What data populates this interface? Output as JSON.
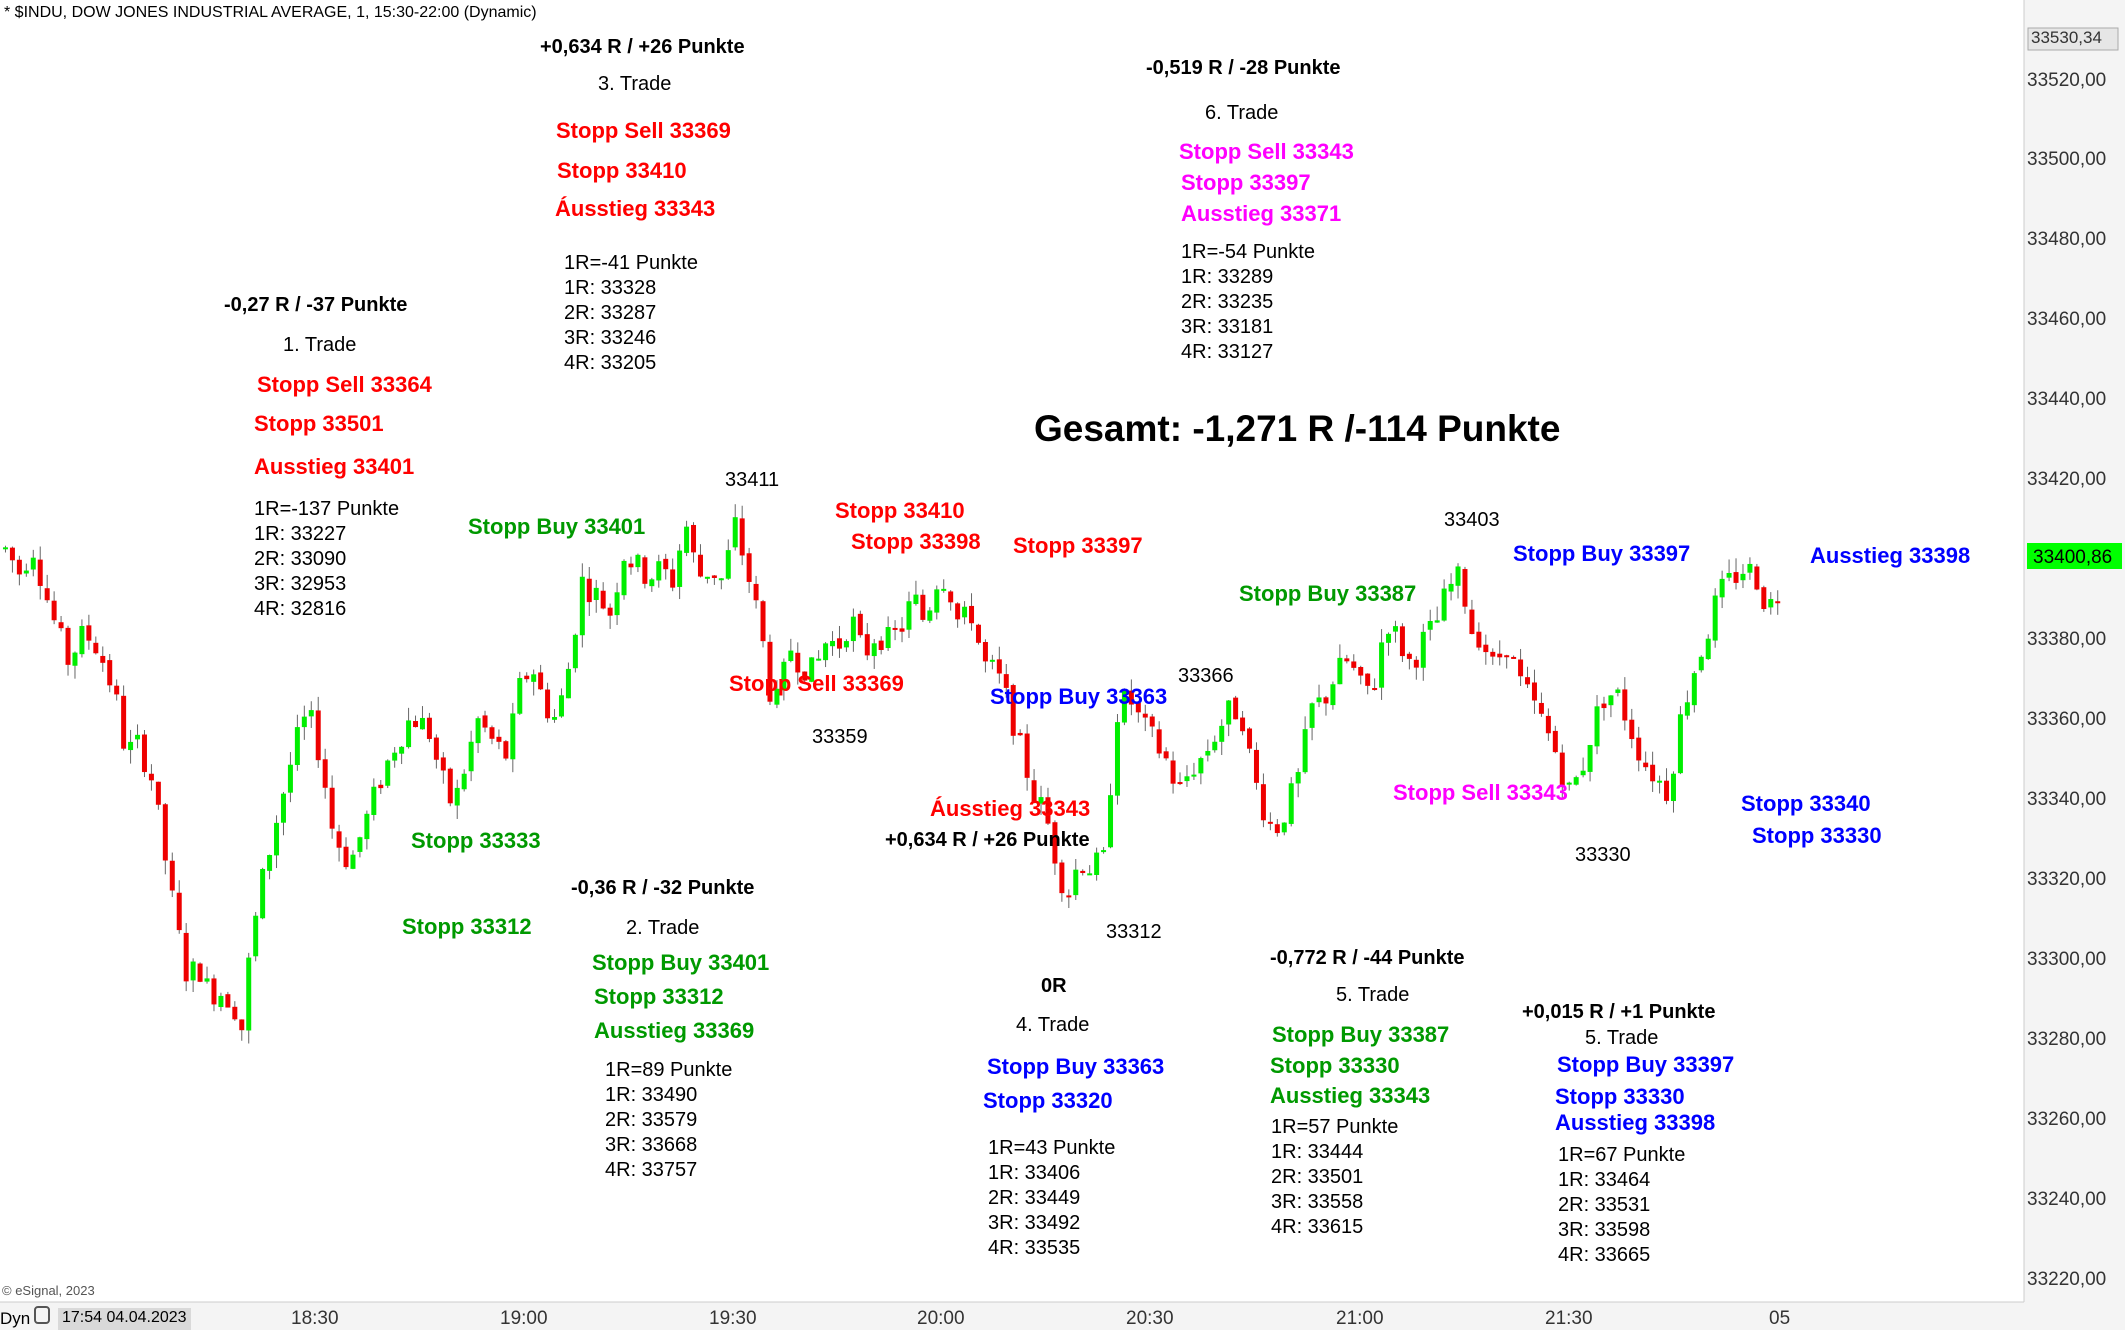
{
  "header": {
    "title": "* $INDU, DOW JONES INDUSTRIAL AVERAGE, 1, 15:30-22:00 (Dynamic)"
  },
  "footer": {
    "copyright": "© eSignal, 2023",
    "mode": "Dyn",
    "date_box": "17:54 04.04.2023"
  },
  "chart_data": {
    "type": "candlestick",
    "title": "* $INDU, DOW JONES INDUSTRIAL AVERAGE, 1, 15:30-22:00 (Dynamic)",
    "y_axis": {
      "ylim": [
        33210,
        33545
      ],
      "ticks": [
        "33220,00",
        "33240,00",
        "33260,00",
        "33280,00",
        "33300,00",
        "33320,00",
        "33340,00",
        "33360,00",
        "33380,00",
        "33400,00",
        "33420,00",
        "33440,00",
        "33460,00",
        "33480,00",
        "33500,00",
        "33520,00",
        "33530,34"
      ],
      "last_price": "33400,86",
      "last_price_color": "#00ff00"
    },
    "x_axis": {
      "ticks": [
        "18:30",
        "19:00",
        "19:30",
        "20:00",
        "20:30",
        "21:00",
        "21:30",
        "05"
      ]
    },
    "up_color": "#00ee00",
    "down_color": "#ee0000",
    "anchors": [
      {
        "x": 0,
        "p": 33401
      },
      {
        "x": 7,
        "p": 33395
      },
      {
        "x": 13,
        "p": 33402
      },
      {
        "x": 22,
        "p": 33385
      },
      {
        "x": 30,
        "p": 33373
      },
      {
        "x": 38,
        "p": 33380
      },
      {
        "x": 45,
        "p": 33376
      },
      {
        "x": 53,
        "p": 33364
      },
      {
        "x": 58,
        "p": 33350
      },
      {
        "x": 64,
        "p": 33352
      },
      {
        "x": 70,
        "p": 33345
      },
      {
        "x": 75,
        "p": 33330
      },
      {
        "x": 82,
        "p": 33308
      },
      {
        "x": 88,
        "p": 33293
      },
      {
        "x": 93,
        "p": 33297
      },
      {
        "x": 98,
        "p": 33290
      },
      {
        "x": 105,
        "p": 33290
      },
      {
        "x": 110,
        "p": 33287
      },
      {
        "x": 114,
        "p": 33281
      },
      {
        "x": 118,
        "p": 33300
      },
      {
        "x": 124,
        "p": 33318
      },
      {
        "x": 132,
        "p": 33336
      },
      {
        "x": 140,
        "p": 33352
      },
      {
        "x": 146,
        "p": 33360
      },
      {
        "x": 152,
        "p": 33349
      },
      {
        "x": 158,
        "p": 33330
      },
      {
        "x": 166,
        "p": 33322
      },
      {
        "x": 172,
        "p": 33330
      },
      {
        "x": 180,
        "p": 33342
      },
      {
        "x": 188,
        "p": 33352
      },
      {
        "x": 196,
        "p": 33359
      },
      {
        "x": 204,
        "p": 33356
      },
      {
        "x": 210,
        "p": 33344
      },
      {
        "x": 216,
        "p": 33336
      },
      {
        "x": 222,
        "p": 33347
      },
      {
        "x": 228,
        "p": 33358
      },
      {
        "x": 236,
        "p": 33352
      },
      {
        "x": 242,
        "p": 33349
      },
      {
        "x": 248,
        "p": 33366
      },
      {
        "x": 254,
        "p": 33372
      },
      {
        "x": 260,
        "p": 33362
      },
      {
        "x": 266,
        "p": 33358
      },
      {
        "x": 272,
        "p": 33372
      },
      {
        "x": 278,
        "p": 33393
      },
      {
        "x": 286,
        "p": 33389
      },
      {
        "x": 292,
        "p": 33385
      },
      {
        "x": 298,
        "p": 33400
      },
      {
        "x": 304,
        "p": 33397
      },
      {
        "x": 310,
        "p": 33394
      },
      {
        "x": 316,
        "p": 33396
      },
      {
        "x": 322,
        "p": 33393
      },
      {
        "x": 328,
        "p": 33408
      },
      {
        "x": 334,
        "p": 33394
      },
      {
        "x": 340,
        "p": 33396
      },
      {
        "x": 346,
        "p": 33393
      },
      {
        "x": 352,
        "p": 33407
      },
      {
        "x": 358,
        "p": 33395
      },
      {
        "x": 364,
        "p": 33382
      },
      {
        "x": 369,
        "p": 33365
      },
      {
        "x": 373,
        "p": 33362
      },
      {
        "x": 378,
        "p": 33377
      },
      {
        "x": 384,
        "p": 33372
      },
      {
        "x": 390,
        "p": 33370
      },
      {
        "x": 396,
        "p": 33378
      },
      {
        "x": 402,
        "p": 33377
      },
      {
        "x": 408,
        "p": 33384
      },
      {
        "x": 414,
        "p": 33374
      },
      {
        "x": 420,
        "p": 33380
      },
      {
        "x": 426,
        "p": 33378
      },
      {
        "x": 432,
        "p": 33381
      },
      {
        "x": 438,
        "p": 33389
      },
      {
        "x": 444,
        "p": 33382
      },
      {
        "x": 448,
        "p": 33393
      },
      {
        "x": 454,
        "p": 33394
      },
      {
        "x": 460,
        "p": 33382
      },
      {
        "x": 466,
        "p": 33385
      },
      {
        "x": 472,
        "p": 33372
      },
      {
        "x": 478,
        "p": 33370
      },
      {
        "x": 484,
        "p": 33362
      },
      {
        "x": 490,
        "p": 33350
      },
      {
        "x": 496,
        "p": 33340
      },
      {
        "x": 502,
        "p": 33334
      },
      {
        "x": 507,
        "p": 33323
      },
      {
        "x": 512,
        "p": 33314
      },
      {
        "x": 518,
        "p": 33323
      },
      {
        "x": 524,
        "p": 33321
      },
      {
        "x": 530,
        "p": 33323
      },
      {
        "x": 536,
        "p": 33360
      },
      {
        "x": 542,
        "p": 33364
      },
      {
        "x": 548,
        "p": 33357
      },
      {
        "x": 554,
        "p": 33353
      },
      {
        "x": 560,
        "p": 33348
      },
      {
        "x": 566,
        "p": 33340
      },
      {
        "x": 572,
        "p": 33346
      },
      {
        "x": 578,
        "p": 33349
      },
      {
        "x": 584,
        "p": 33355
      },
      {
        "x": 590,
        "p": 33360
      },
      {
        "x": 596,
        "p": 33361
      },
      {
        "x": 602,
        "p": 33344
      },
      {
        "x": 607,
        "p": 33336
      },
      {
        "x": 612,
        "p": 33330
      },
      {
        "x": 618,
        "p": 33336
      },
      {
        "x": 624,
        "p": 33344
      },
      {
        "x": 630,
        "p": 33361
      },
      {
        "x": 636,
        "p": 33363
      },
      {
        "x": 642,
        "p": 33370
      },
      {
        "x": 648,
        "p": 33373
      },
      {
        "x": 654,
        "p": 33366
      },
      {
        "x": 660,
        "p": 33366
      },
      {
        "x": 666,
        "p": 33384
      },
      {
        "x": 672,
        "p": 33378
      },
      {
        "x": 678,
        "p": 33372
      },
      {
        "x": 684,
        "p": 33378
      },
      {
        "x": 690,
        "p": 33382
      },
      {
        "x": 696,
        "p": 33391
      },
      {
        "x": 702,
        "p": 33394
      },
      {
        "x": 707,
        "p": 33381
      },
      {
        "x": 712,
        "p": 33379
      },
      {
        "x": 718,
        "p": 33371
      },
      {
        "x": 724,
        "p": 33378
      },
      {
        "x": 730,
        "p": 33368
      },
      {
        "x": 736,
        "p": 33363
      },
      {
        "x": 742,
        "p": 33357
      },
      {
        "x": 748,
        "p": 33350
      },
      {
        "x": 754,
        "p": 33340
      },
      {
        "x": 760,
        "p": 33345
      },
      {
        "x": 766,
        "p": 33357
      },
      {
        "x": 772,
        "p": 33365
      },
      {
        "x": 778,
        "p": 33364
      },
      {
        "x": 784,
        "p": 33356
      },
      {
        "x": 790,
        "p": 33348
      },
      {
        "x": 796,
        "p": 33344
      },
      {
        "x": 802,
        "p": 33340
      },
      {
        "x": 808,
        "p": 33358
      },
      {
        "x": 814,
        "p": 33370
      },
      {
        "x": 820,
        "p": 33378
      },
      {
        "x": 826,
        "p": 33389
      },
      {
        "x": 832,
        "p": 33393
      },
      {
        "x": 838,
        "p": 33396
      },
      {
        "x": 844,
        "p": 33395
      },
      {
        "x": 850,
        "p": 33386
      },
      {
        "x": 855,
        "p": 33390
      }
    ]
  },
  "price_labels": {
    "p33411": "33411",
    "p33359": "33359",
    "p33366": "33366",
    "p33312": "33312",
    "p33403": "33403",
    "p33330": "33330"
  },
  "total": "Gesamt: -1,271 R /-114 Punkte",
  "trades": {
    "t1": {
      "result": "-0,27 R / -37 Punkte",
      "name": "1. Trade",
      "entry": "Stopp Sell 33364",
      "stop": "Stopp 33501",
      "exit": "Ausstieg 33401",
      "r_lines": [
        "1R=-137 Punkte",
        "1R: 33227",
        "2R: 33090",
        "3R: 32953",
        "4R: 32816"
      ]
    },
    "t2": {
      "result": "-0,36 R / -32 Punkte",
      "name": "2. Trade",
      "entry": "Stopp Buy 33401",
      "stop": "Stopp 33312",
      "exit": "Ausstieg 33369",
      "r_lines": [
        "1R=89 Punkte",
        "1R: 33490",
        "2R: 33579",
        "3R: 33668",
        "4R: 33757"
      ]
    },
    "t3": {
      "result": "+0,634 R / +26 Punkte",
      "name": "3. Trade",
      "entry": "Stopp Sell 33369",
      "stop": "Stopp 33410",
      "exit": "Áusstieg 33343",
      "r_lines": [
        "1R=-41 Punkte",
        "1R: 33328",
        "2R: 33287",
        "3R: 33246",
        "4R: 33205"
      ]
    },
    "t4": {
      "result": "0R",
      "name": "4. Trade",
      "entry": "Stopp Buy 33363",
      "stop": "Stopp 33320",
      "r_lines": [
        "1R=43 Punkte",
        "1R: 33406",
        "2R: 33449",
        "3R: 33492",
        "4R: 33535"
      ]
    },
    "t5a": {
      "result": "-0,772 R / -44 Punkte",
      "name": "5. Trade",
      "entry": "Stopp Buy 33387",
      "stop": "Stopp 33330",
      "exit": "Ausstieg 33343",
      "r_lines": [
        "1R=57 Punkte",
        "1R: 33444",
        "2R: 33501",
        "3R: 33558",
        "4R: 33615"
      ]
    },
    "t5b": {
      "result": "+0,015 R / +1 Punkte",
      "name": "5. Trade",
      "entry": "Stopp Buy 33397",
      "stop": "Stopp 33330",
      "exit": "Ausstieg 33398",
      "r_lines": [
        "1R=67 Punkte",
        "1R: 33464",
        "2R: 33531",
        "3R: 33598",
        "4R: 33665"
      ]
    },
    "t6": {
      "result": "-0,519 R / -28 Punkte",
      "name": "6. Trade",
      "entry": "Stopp Sell 33343",
      "stop": "Stopp 33397",
      "exit": "Ausstieg 33371",
      "r_lines": [
        "1R=-54 Punkte",
        "1R: 33289",
        "2R: 33235",
        "3R: 33181",
        "4R: 33127"
      ]
    }
  },
  "on_chart": {
    "stopp_buy_33401": "Stopp Buy 33401",
    "stopp_33333": "Stopp 33333",
    "stopp_33312": "Stopp 33312",
    "stopp_33410": "Stopp 33410",
    "stopp_33398": "Stopp 33398",
    "stopp_33397": "Stopp 33397",
    "stopp_sell_33369": "Stopp Sell 33369",
    "stopp_buy_33363": "Stopp Buy 33363",
    "ausstieg_33343": "Áusstieg 33343",
    "result_634": "+0,634 R / +26 Punkte",
    "stopp_buy_33387": "Stopp Buy 33387",
    "stopp_buy_33397": "Stopp Buy 33397",
    "ausstieg_33398": "Ausstieg 33398",
    "stopp_sell_33343": "Stopp Sell 33343",
    "stopp_33340": "Stopp 33340",
    "stopp_33330": "Stopp 33330"
  }
}
